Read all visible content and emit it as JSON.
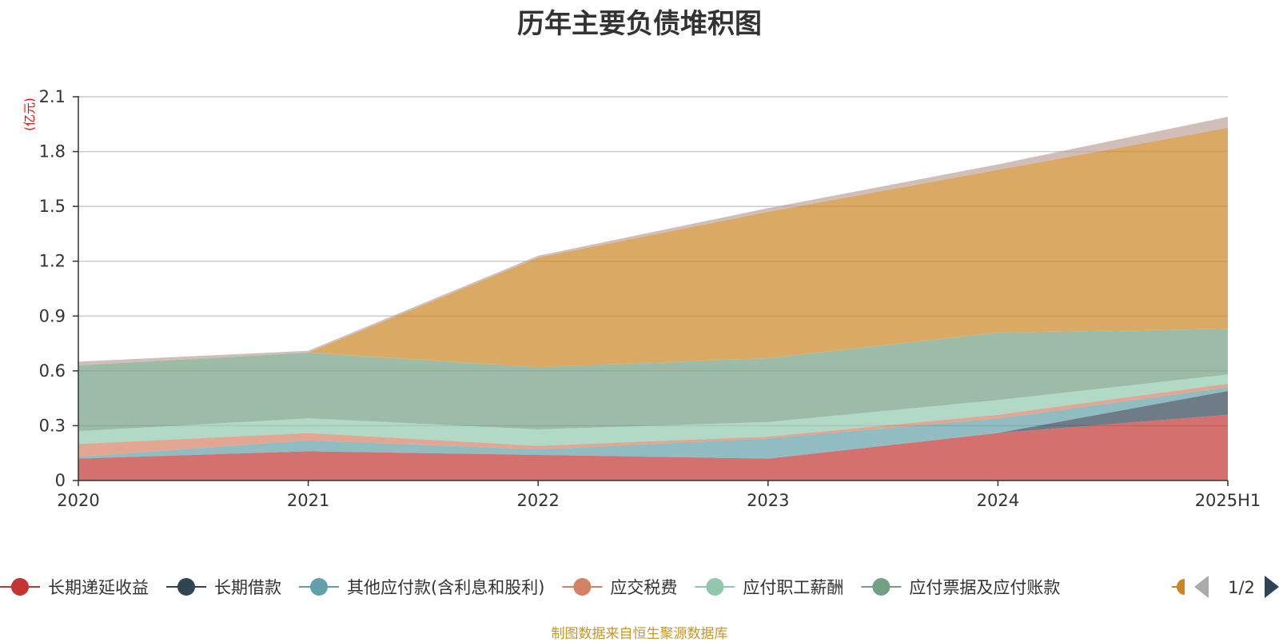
{
  "chart_data": {
    "type": "area",
    "stacked": true,
    "title": "历年主要负债堆积图",
    "unit_label": "(亿元)",
    "categories": [
      "2020",
      "2021",
      "2022",
      "2023",
      "2024",
      "2025H1"
    ],
    "ylim": [
      0,
      2.1
    ],
    "yticks": [
      "0",
      "0.3",
      "0.6",
      "0.9",
      "1.2",
      "1.5",
      "1.8",
      "2.1"
    ],
    "grid": true,
    "legend_position": "bottom",
    "legend_page": "1/2",
    "series": [
      {
        "name": "长期递延收益",
        "color": "#c23531",
        "values": [
          0.12,
          0.16,
          0.14,
          0.12,
          0.26,
          0.36
        ]
      },
      {
        "name": "长期借款",
        "color": "#2f4554",
        "values": [
          0.0,
          0.0,
          0.0,
          0.0,
          0.0,
          0.13
        ]
      },
      {
        "name": "其他应付款(含利息和股利)",
        "color": "#61a0a8",
        "values": [
          0.01,
          0.06,
          0.03,
          0.11,
          0.08,
          0.02
        ]
      },
      {
        "name": "应交税费",
        "color": "#d48265",
        "values": [
          0.07,
          0.04,
          0.02,
          0.01,
          0.02,
          0.02
        ]
      },
      {
        "name": "应付职工薪酬",
        "color": "#91c7ae",
        "values": [
          0.07,
          0.08,
          0.09,
          0.08,
          0.08,
          0.05
        ]
      },
      {
        "name": "应付票据及应付账款",
        "color": "#749f83",
        "values": [
          0.36,
          0.36,
          0.34,
          0.35,
          0.37,
          0.25
        ]
      },
      {
        "name": "",
        "color": "#ca8622",
        "values": [
          0.0,
          0.0,
          0.6,
          0.8,
          0.89,
          1.1
        ]
      },
      {
        "name": "",
        "color": "#bda29a",
        "values": [
          0.02,
          0.01,
          0.01,
          0.02,
          0.03,
          0.06
        ]
      }
    ]
  },
  "legend_items": [
    {
      "name": "长期递延收益",
      "color": "#c23531"
    },
    {
      "name": "长期借款",
      "color": "#2f4554"
    },
    {
      "name": "其他应付款(含利息和股利)",
      "color": "#61a0a8"
    },
    {
      "name": "应交税费",
      "color": "#d48265"
    },
    {
      "name": "应付职工薪酬",
      "color": "#91c7ae"
    },
    {
      "name": "应付票据及应付账款",
      "color": "#749f83"
    }
  ],
  "legend_partial_color": "#ca8622",
  "footer": "制图数据来自恒生聚源数据库"
}
